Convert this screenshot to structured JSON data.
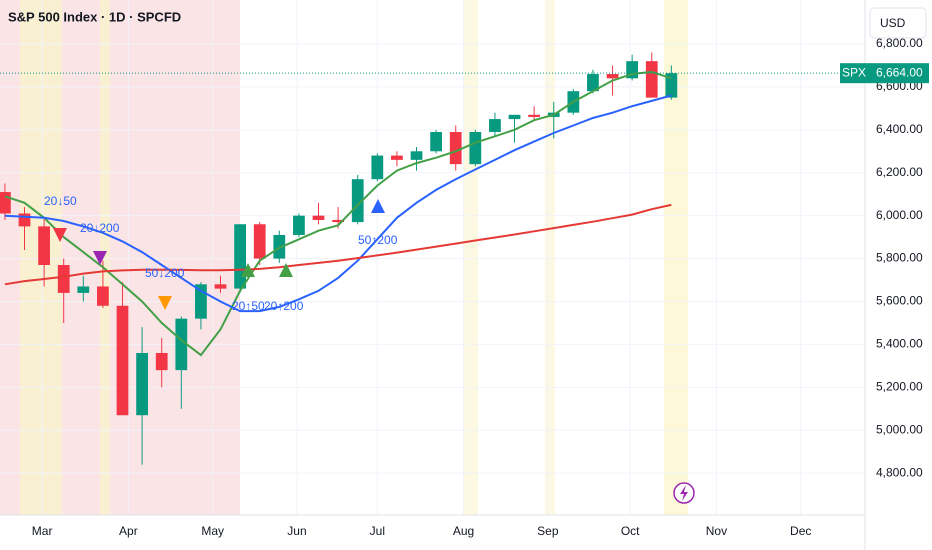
{
  "chart_data": {
    "type": "candlestick",
    "title": "S&P 500 Index · 1D · SPCFD",
    "currency": "USD",
    "symbol": "SPX",
    "last_price": {
      "value": 6664,
      "label": "6,664.00"
    },
    "up_color": "#089981",
    "down_color": "#f23645",
    "categories": [
      null,
      null,
      null,
      null,
      null,
      null,
      null,
      null,
      null,
      null,
      null,
      null,
      null,
      null,
      null,
      null,
      null,
      null,
      null,
      null,
      null,
      null,
      null,
      null,
      null,
      null,
      null,
      null,
      null,
      null,
      null,
      null,
      null,
      null,
      null
    ],
    "open": [
      6110,
      6010,
      5950,
      5770,
      5640,
      5670,
      5580,
      5070,
      5360,
      5280,
      5520,
      5680,
      5660,
      5960,
      5800,
      5910,
      6000,
      5980,
      5970,
      6170,
      6280,
      6260,
      6300,
      6390,
      6240,
      6390,
      6450,
      6470,
      6460,
      6480,
      6580,
      6660,
      6640,
      6720,
      6550
    ],
    "high": [
      6150,
      6040,
      5990,
      5800,
      5720,
      5790,
      5690,
      5480,
      5430,
      5530,
      5690,
      5720,
      5960,
      5970,
      5930,
      6010,
      6060,
      6040,
      6190,
      6290,
      6300,
      6320,
      6400,
      6420,
      6400,
      6480,
      6470,
      6510,
      6530,
      6590,
      6680,
      6700,
      6750,
      6760,
      6700
    ],
    "low": [
      5980,
      5840,
      5670,
      5500,
      5600,
      5570,
      5070,
      4840,
      5200,
      5100,
      5470,
      5640,
      5640,
      5770,
      5780,
      5900,
      5960,
      5940,
      5960,
      6160,
      6230,
      6210,
      6290,
      6210,
      6230,
      6370,
      6340,
      6440,
      6360,
      6470,
      6570,
      6560,
      6630,
      6550,
      6540
    ],
    "close": [
      6010,
      5950,
      5770,
      5640,
      5670,
      5580,
      5070,
      5360,
      5280,
      5520,
      5680,
      5660,
      5960,
      5800,
      5910,
      6000,
      5980,
      5970,
      6170,
      6280,
      6260,
      6300,
      6390,
      6240,
      6390,
      6450,
      6470,
      6460,
      6480,
      6580,
      6660,
      6640,
      6720,
      6550,
      6664
    ],
    "moving_averages": [
      {
        "color": "#43a047",
        "values": [
          6090,
          6060,
          5990,
          5900,
          5830,
          5760,
          5680,
          5600,
          5500,
          5420,
          5350,
          5470,
          5650,
          5790,
          5850,
          5890,
          5930,
          5955,
          6050,
          6140,
          6210,
          6245,
          6270,
          6300,
          6340,
          6370,
          6400,
          6445,
          6470,
          6530,
          6580,
          6630,
          6660,
          6670,
          6640
        ]
      },
      {
        "color": "#2962ff",
        "values": [
          6000,
          5995,
          5990,
          5975,
          5950,
          5920,
          5880,
          5830,
          5770,
          5710,
          5650,
          5600,
          5555,
          5555,
          5575,
          5610,
          5650,
          5710,
          5790,
          5890,
          5990,
          6060,
          6120,
          6170,
          6215,
          6260,
          6305,
          6345,
          6385,
          6420,
          6455,
          6480,
          6510,
          6535,
          6560
        ]
      },
      {
        "color": "#e53935",
        "values": [
          5680,
          5695,
          5705,
          5715,
          5730,
          5740,
          5745,
          5748,
          5748,
          5747,
          5746,
          5746,
          5748,
          5752,
          5760,
          5770,
          5780,
          5790,
          5802,
          5815,
          5828,
          5842,
          5856,
          5870,
          5884,
          5898,
          5912,
          5927,
          5942,
          5957,
          5972,
          5988,
          6005,
          6030,
          6050
        ]
      }
    ],
    "annotations": [
      {
        "text": "20↓50"
      },
      {
        "text": "20↓200"
      },
      {
        "text": "50↓200"
      },
      {
        "text": "20↑50"
      },
      {
        "text": "20↑200"
      },
      {
        "text": "50↑200"
      }
    ],
    "xlim": [
      -0.25,
      43.88
    ],
    "xticks": [
      {
        "value": 1.9,
        "label": "Mar"
      },
      {
        "value": 6.3,
        "label": "Apr"
      },
      {
        "value": 10.6,
        "label": "May"
      },
      {
        "value": 14.9,
        "label": "Jun"
      },
      {
        "value": 19.0,
        "label": "Jul"
      },
      {
        "value": 23.4,
        "label": "Aug"
      },
      {
        "value": 27.7,
        "label": "Sep"
      },
      {
        "value": 31.9,
        "label": "Oct"
      },
      {
        "value": 36.3,
        "label": "Nov"
      },
      {
        "value": 40.6,
        "label": "Dec"
      }
    ],
    "ylim": [
      4605,
      7005
    ],
    "yticks": [
      {
        "value": 4800,
        "label": "4,800.00"
      },
      {
        "value": 5000,
        "label": "5,000.00"
      },
      {
        "value": 5200,
        "label": "5,200.00"
      },
      {
        "value": 5400,
        "label": "5,400.00"
      },
      {
        "value": 5600,
        "label": "5,600.00"
      },
      {
        "value": 5800,
        "label": "5,800.00"
      },
      {
        "value": 6000,
        "label": "6,000.00"
      },
      {
        "value": 6200,
        "label": "6,200.00"
      },
      {
        "value": 6400,
        "label": "6,400.00"
      },
      {
        "value": 6600,
        "label": "6,600.00"
      },
      {
        "value": 6800,
        "label": "6,800.00"
      }
    ],
    "grid": true
  }
}
